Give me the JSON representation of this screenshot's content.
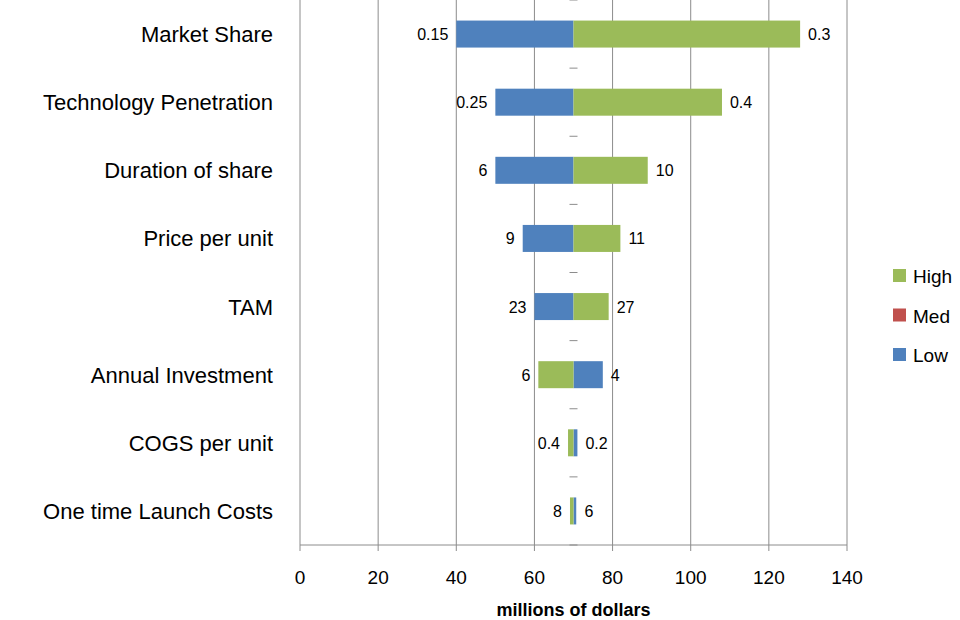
{
  "chart_data": {
    "type": "bar",
    "orientation": "horizontal",
    "x_label": "millions of dollars",
    "categories": [
      "Market Share",
      "Technology Penetration",
      "Duration of share",
      "Price per unit",
      "TAM",
      "Annual Investment",
      "COGS per unit",
      "One time Launch Costs"
    ],
    "series": [
      {
        "name": "High",
        "color": "#9bbb59",
        "values": [
          128,
          108,
          89,
          82,
          79,
          61,
          68.6,
          69.1
        ],
        "inputs": [
          0.3,
          0.4,
          10,
          11,
          27,
          6,
          0.4,
          8
        ]
      },
      {
        "name": "Med",
        "color": "#c0504d",
        "values": [
          70,
          70,
          70,
          70,
          70,
          70,
          70,
          70
        ]
      },
      {
        "name": "Low",
        "color": "#4f81bd",
        "values": [
          40,
          50,
          50,
          57,
          60,
          77.5,
          71,
          70.7
        ],
        "inputs": [
          0.15,
          0.25,
          6,
          9,
          23,
          4,
          0.2,
          6
        ]
      }
    ],
    "xlim": [
      0,
      140
    ],
    "xticks": [
      0,
      20,
      40,
      60,
      80,
      100,
      120,
      140
    ],
    "grid": true,
    "legend": "right"
  }
}
